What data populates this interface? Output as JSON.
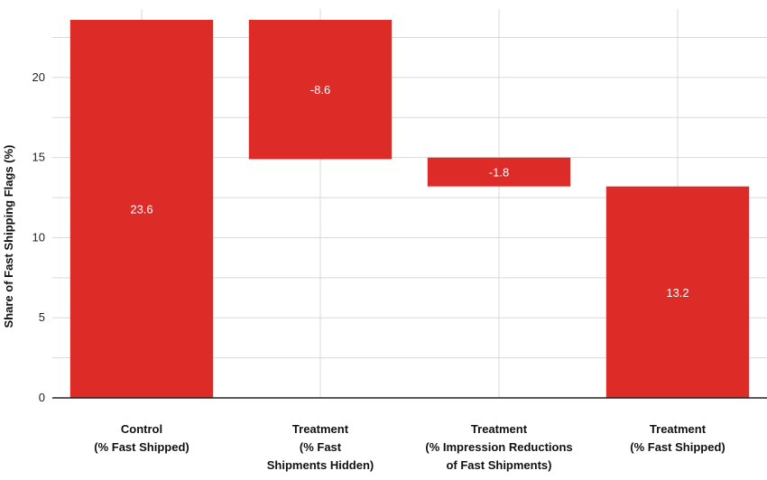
{
  "chart_data": {
    "type": "bar",
    "subtype": "waterfall",
    "title": "",
    "ylabel": "Share of Fast Shipping Flags (%)",
    "xlabel": "",
    "ylim": [
      0,
      23.6
    ],
    "yticks": [
      0,
      5,
      10,
      15,
      20
    ],
    "grid": true,
    "colors": {
      "bar": "#dd2c28",
      "grid": "#d9d9d9",
      "axis": "#222222"
    },
    "categories": [
      [
        "Control",
        "(% Fast Shipped)"
      ],
      [
        "Treatment",
        "(% Fast",
        "Shipments Hidden)"
      ],
      [
        "Treatment",
        "(% Impression Reductions",
        "of Fast Shipments)"
      ],
      [
        "Treatment",
        "(% Fast Shipped)"
      ]
    ],
    "bars": [
      {
        "label": "23.6",
        "start": 0,
        "end": 23.6
      },
      {
        "label": "-8.6",
        "start": 14.9,
        "end": 23.6
      },
      {
        "label": "-1.8",
        "start": 13.2,
        "end": 15.0
      },
      {
        "label": "13.2",
        "start": 0,
        "end": 13.2
      }
    ]
  }
}
